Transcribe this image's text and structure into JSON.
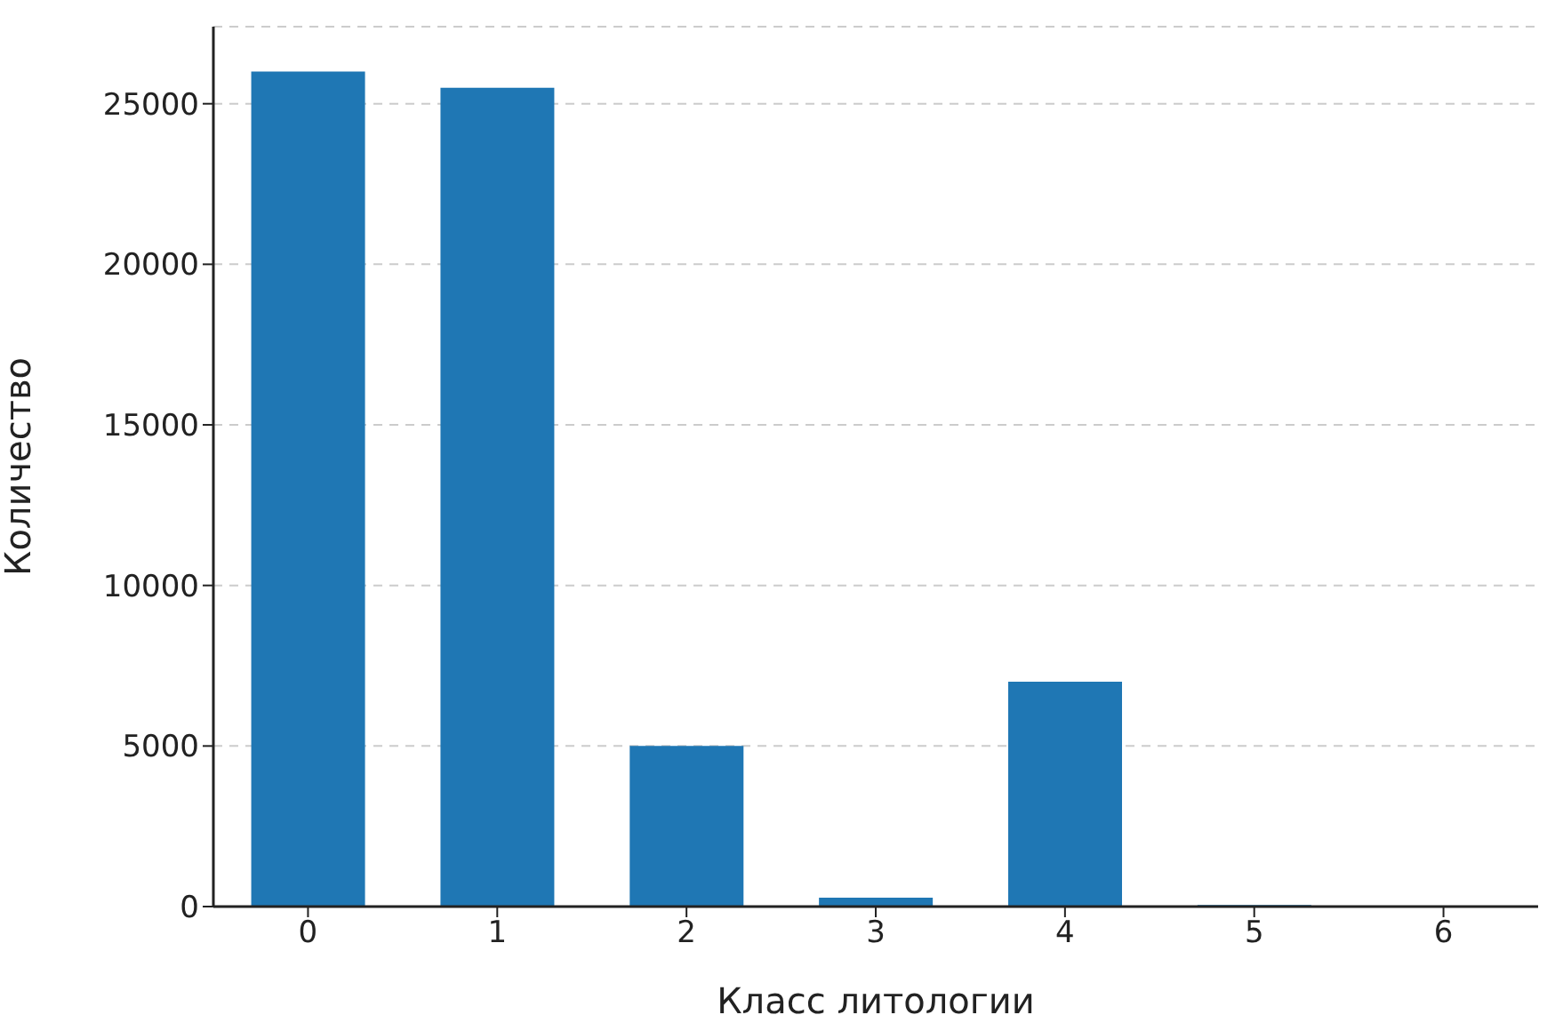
{
  "chart_data": {
    "type": "bar",
    "xlabel": "Класс литологии",
    "ylabel": "Количество",
    "categories": [
      "0",
      "1",
      "2",
      "3",
      "4",
      "5",
      "6"
    ],
    "values": [
      26000,
      25500,
      5000,
      280,
      7000,
      50,
      10
    ],
    "color": "#1f77b4",
    "ylim": [
      0,
      27400
    ],
    "yticks": [
      0,
      5000,
      10000,
      15000,
      20000,
      25000
    ],
    "grid": "y"
  }
}
